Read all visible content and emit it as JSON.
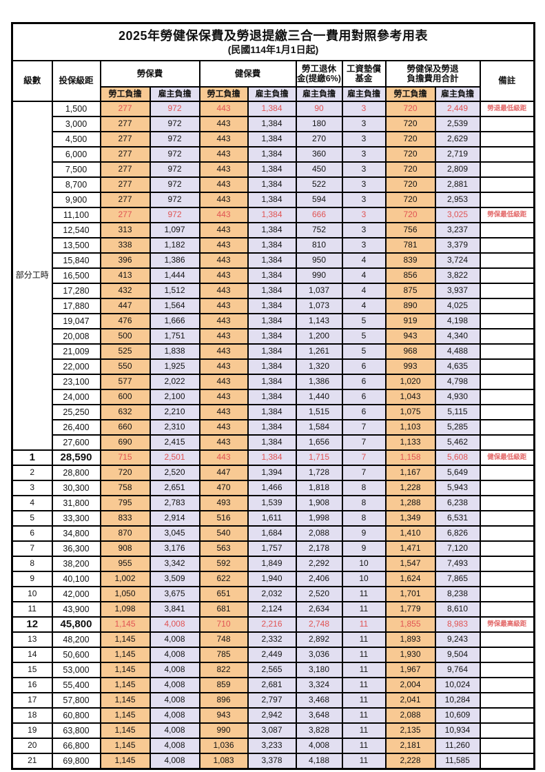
{
  "title": {
    "line1": "2025年勞健保保費及勞退提繳三合一費用對照參考用表",
    "line2": "(民國114年1月1日起)"
  },
  "columns": {
    "level": "級數",
    "bracket": "投保級距",
    "labor_insurance": "勞保費",
    "health_insurance": "健保費",
    "pension_line1": "勞工退休",
    "pension_line2": "金(提繳6%)",
    "wage_fund_line1": "工資墊償",
    "wage_fund_line2": "基金",
    "total_line1": "勞健保及勞退",
    "total_line2": "負擔費用合計",
    "remark": "備註",
    "worker_label": "勞工負擔",
    "employer_label": "雇主負擔"
  },
  "part_time": {
    "label": "部分工時",
    "span": 23
  },
  "colors": {
    "worker_bg": "#F8C993",
    "employer_bg": "#E2DFF1",
    "highlight_red": "#E05353",
    "note_red": "#E36A6A"
  },
  "rows": [
    {
      "level": null,
      "bracket": "1,500",
      "values": [
        "277",
        "972",
        "443",
        "1,384",
        "90",
        "3",
        "720",
        "2,449"
      ],
      "note": "勞退最低級距",
      "red": true,
      "bold": false
    },
    {
      "level": null,
      "bracket": "3,000",
      "values": [
        "277",
        "972",
        "443",
        "1,384",
        "180",
        "3",
        "720",
        "2,539"
      ],
      "note": "",
      "red": false,
      "bold": false
    },
    {
      "level": null,
      "bracket": "4,500",
      "values": [
        "277",
        "972",
        "443",
        "1,384",
        "270",
        "3",
        "720",
        "2,629"
      ],
      "note": "",
      "red": false,
      "bold": false
    },
    {
      "level": null,
      "bracket": "6,000",
      "values": [
        "277",
        "972",
        "443",
        "1,384",
        "360",
        "3",
        "720",
        "2,719"
      ],
      "note": "",
      "red": false,
      "bold": false
    },
    {
      "level": null,
      "bracket": "7,500",
      "values": [
        "277",
        "972",
        "443",
        "1,384",
        "450",
        "3",
        "720",
        "2,809"
      ],
      "note": "",
      "red": false,
      "bold": false
    },
    {
      "level": null,
      "bracket": "8,700",
      "values": [
        "277",
        "972",
        "443",
        "1,384",
        "522",
        "3",
        "720",
        "2,881"
      ],
      "note": "",
      "red": false,
      "bold": false
    },
    {
      "level": null,
      "bracket": "9,900",
      "values": [
        "277",
        "972",
        "443",
        "1,384",
        "594",
        "3",
        "720",
        "2,953"
      ],
      "note": "",
      "red": false,
      "bold": false
    },
    {
      "level": null,
      "bracket": "11,100",
      "values": [
        "277",
        "972",
        "443",
        "1,384",
        "666",
        "3",
        "720",
        "3,025"
      ],
      "note": "勞保最低級距",
      "red": true,
      "bold": false
    },
    {
      "level": null,
      "bracket": "12,540",
      "values": [
        "313",
        "1,097",
        "443",
        "1,384",
        "752",
        "3",
        "756",
        "3,237"
      ],
      "note": "",
      "red": false,
      "bold": false
    },
    {
      "level": null,
      "bracket": "13,500",
      "values": [
        "338",
        "1,182",
        "443",
        "1,384",
        "810",
        "3",
        "781",
        "3,379"
      ],
      "note": "",
      "red": false,
      "bold": false
    },
    {
      "level": null,
      "bracket": "15,840",
      "values": [
        "396",
        "1,386",
        "443",
        "1,384",
        "950",
        "4",
        "839",
        "3,724"
      ],
      "note": "",
      "red": false,
      "bold": false
    },
    {
      "level": null,
      "bracket": "16,500",
      "values": [
        "413",
        "1,444",
        "443",
        "1,384",
        "990",
        "4",
        "856",
        "3,822"
      ],
      "note": "",
      "red": false,
      "bold": false
    },
    {
      "level": null,
      "bracket": "17,280",
      "values": [
        "432",
        "1,512",
        "443",
        "1,384",
        "1,037",
        "4",
        "875",
        "3,937"
      ],
      "note": "",
      "red": false,
      "bold": false
    },
    {
      "level": null,
      "bracket": "17,880",
      "values": [
        "447",
        "1,564",
        "443",
        "1,384",
        "1,073",
        "4",
        "890",
        "4,025"
      ],
      "note": "",
      "red": false,
      "bold": false
    },
    {
      "level": null,
      "bracket": "19,047",
      "values": [
        "476",
        "1,666",
        "443",
        "1,384",
        "1,143",
        "5",
        "919",
        "4,198"
      ],
      "note": "",
      "red": false,
      "bold": false
    },
    {
      "level": null,
      "bracket": "20,008",
      "values": [
        "500",
        "1,751",
        "443",
        "1,384",
        "1,200",
        "5",
        "943",
        "4,340"
      ],
      "note": "",
      "red": false,
      "bold": false
    },
    {
      "level": null,
      "bracket": "21,009",
      "values": [
        "525",
        "1,838",
        "443",
        "1,384",
        "1,261",
        "5",
        "968",
        "4,488"
      ],
      "note": "",
      "red": false,
      "bold": false
    },
    {
      "level": null,
      "bracket": "22,000",
      "values": [
        "550",
        "1,925",
        "443",
        "1,384",
        "1,320",
        "6",
        "993",
        "4,635"
      ],
      "note": "",
      "red": false,
      "bold": false
    },
    {
      "level": null,
      "bracket": "23,100",
      "values": [
        "577",
        "2,022",
        "443",
        "1,384",
        "1,386",
        "6",
        "1,020",
        "4,798"
      ],
      "note": "",
      "red": false,
      "bold": false
    },
    {
      "level": null,
      "bracket": "24,000",
      "values": [
        "600",
        "2,100",
        "443",
        "1,384",
        "1,440",
        "6",
        "1,043",
        "4,930"
      ],
      "note": "",
      "red": false,
      "bold": false
    },
    {
      "level": null,
      "bracket": "25,250",
      "values": [
        "632",
        "2,210",
        "443",
        "1,384",
        "1,515",
        "6",
        "1,075",
        "5,115"
      ],
      "note": "",
      "red": false,
      "bold": false
    },
    {
      "level": null,
      "bracket": "26,400",
      "values": [
        "660",
        "2,310",
        "443",
        "1,384",
        "1,584",
        "7",
        "1,103",
        "5,285"
      ],
      "note": "",
      "red": false,
      "bold": false
    },
    {
      "level": null,
      "bracket": "27,600",
      "values": [
        "690",
        "2,415",
        "443",
        "1,384",
        "1,656",
        "7",
        "1,133",
        "5,462"
      ],
      "note": "",
      "red": false,
      "bold": false
    },
    {
      "level": "1",
      "bracket": "28,590",
      "values": [
        "715",
        "2,501",
        "443",
        "1,384",
        "1,715",
        "7",
        "1,158",
        "5,608"
      ],
      "note": "健保最低級距",
      "red": true,
      "bold": true
    },
    {
      "level": "2",
      "bracket": "28,800",
      "values": [
        "720",
        "2,520",
        "447",
        "1,394",
        "1,728",
        "7",
        "1,167",
        "5,649"
      ],
      "note": "",
      "red": false,
      "bold": false
    },
    {
      "level": "3",
      "bracket": "30,300",
      "values": [
        "758",
        "2,651",
        "470",
        "1,466",
        "1,818",
        "8",
        "1,228",
        "5,943"
      ],
      "note": "",
      "red": false,
      "bold": false
    },
    {
      "level": "4",
      "bracket": "31,800",
      "values": [
        "795",
        "2,783",
        "493",
        "1,539",
        "1,908",
        "8",
        "1,288",
        "6,238"
      ],
      "note": "",
      "red": false,
      "bold": false
    },
    {
      "level": "5",
      "bracket": "33,300",
      "values": [
        "833",
        "2,914",
        "516",
        "1,611",
        "1,998",
        "8",
        "1,349",
        "6,531"
      ],
      "note": "",
      "red": false,
      "bold": false
    },
    {
      "level": "6",
      "bracket": "34,800",
      "values": [
        "870",
        "3,045",
        "540",
        "1,684",
        "2,088",
        "9",
        "1,410",
        "6,826"
      ],
      "note": "",
      "red": false,
      "bold": false
    },
    {
      "level": "7",
      "bracket": "36,300",
      "values": [
        "908",
        "3,176",
        "563",
        "1,757",
        "2,178",
        "9",
        "1,471",
        "7,120"
      ],
      "note": "",
      "red": false,
      "bold": false
    },
    {
      "level": "8",
      "bracket": "38,200",
      "values": [
        "955",
        "3,342",
        "592",
        "1,849",
        "2,292",
        "10",
        "1,547",
        "7,493"
      ],
      "note": "",
      "red": false,
      "bold": false
    },
    {
      "level": "9",
      "bracket": "40,100",
      "values": [
        "1,002",
        "3,509",
        "622",
        "1,940",
        "2,406",
        "10",
        "1,624",
        "7,865"
      ],
      "note": "",
      "red": false,
      "bold": false
    },
    {
      "level": "10",
      "bracket": "42,000",
      "values": [
        "1,050",
        "3,675",
        "651",
        "2,032",
        "2,520",
        "11",
        "1,701",
        "8,238"
      ],
      "note": "",
      "red": false,
      "bold": false
    },
    {
      "level": "11",
      "bracket": "43,900",
      "values": [
        "1,098",
        "3,841",
        "681",
        "2,124",
        "2,634",
        "11",
        "1,779",
        "8,610"
      ],
      "note": "",
      "red": false,
      "bold": false
    },
    {
      "level": "12",
      "bracket": "45,800",
      "values": [
        "1,145",
        "4,008",
        "710",
        "2,216",
        "2,748",
        "11",
        "1,855",
        "8,983"
      ],
      "note": "勞保最高級距",
      "red": true,
      "bold": true
    },
    {
      "level": "13",
      "bracket": "48,200",
      "values": [
        "1,145",
        "4,008",
        "748",
        "2,332",
        "2,892",
        "11",
        "1,893",
        "9,243"
      ],
      "note": "",
      "red": false,
      "bold": false
    },
    {
      "level": "14",
      "bracket": "50,600",
      "values": [
        "1,145",
        "4,008",
        "785",
        "2,449",
        "3,036",
        "11",
        "1,930",
        "9,504"
      ],
      "note": "",
      "red": false,
      "bold": false
    },
    {
      "level": "15",
      "bracket": "53,000",
      "values": [
        "1,145",
        "4,008",
        "822",
        "2,565",
        "3,180",
        "11",
        "1,967",
        "9,764"
      ],
      "note": "",
      "red": false,
      "bold": false
    },
    {
      "level": "16",
      "bracket": "55,400",
      "values": [
        "1,145",
        "4,008",
        "859",
        "2,681",
        "3,324",
        "11",
        "2,004",
        "10,024"
      ],
      "note": "",
      "red": false,
      "bold": false
    },
    {
      "level": "17",
      "bracket": "57,800",
      "values": [
        "1,145",
        "4,008",
        "896",
        "2,797",
        "3,468",
        "11",
        "2,041",
        "10,284"
      ],
      "note": "",
      "red": false,
      "bold": false
    },
    {
      "level": "18",
      "bracket": "60,800",
      "values": [
        "1,145",
        "4,008",
        "943",
        "2,942",
        "3,648",
        "11",
        "2,088",
        "10,609"
      ],
      "note": "",
      "red": false,
      "bold": false
    },
    {
      "level": "19",
      "bracket": "63,800",
      "values": [
        "1,145",
        "4,008",
        "990",
        "3,087",
        "3,828",
        "11",
        "2,135",
        "10,934"
      ],
      "note": "",
      "red": false,
      "bold": false
    },
    {
      "level": "20",
      "bracket": "66,800",
      "values": [
        "1,145",
        "4,008",
        "1,036",
        "3,233",
        "4,008",
        "11",
        "2,181",
        "11,260"
      ],
      "note": "",
      "red": false,
      "bold": false
    },
    {
      "level": "21",
      "bracket": "69,800",
      "values": [
        "1,145",
        "4,008",
        "1,083",
        "3,378",
        "4,188",
        "11",
        "2,228",
        "11,585"
      ],
      "note": "",
      "red": false,
      "bold": false
    }
  ]
}
